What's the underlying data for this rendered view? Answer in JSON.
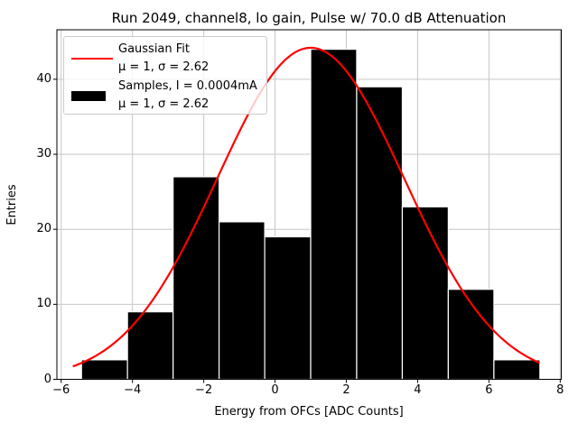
{
  "chart_data": {
    "type": "bar",
    "subtype": "histogram_with_gaussian_fit",
    "title": "Run 2049, channel8, lo gain, Pulse w/ 70.0 dB Attenuation",
    "xlabel": "Energy from OFCs [ADC Counts]",
    "ylabel": "Entries",
    "xlim": [
      -6.12,
      8.03
    ],
    "ylim": [
      0,
      46.6
    ],
    "x_ticks": [
      -6,
      -4,
      -2,
      0,
      2,
      4,
      6,
      8
    ],
    "x_tick_labels": [
      "−6",
      "−4",
      "−2",
      "0",
      "2",
      "4",
      "6",
      "8"
    ],
    "y_ticks": [
      0,
      10,
      20,
      30,
      40
    ],
    "y_tick_labels": [
      "0",
      "10",
      "20",
      "30",
      "40"
    ],
    "grid": true,
    "grid_color": "#c6c6c6",
    "histogram": {
      "bin_edges": [
        -5.43,
        -4.14,
        -2.86,
        -1.57,
        -0.29,
        1.0,
        2.29,
        3.57,
        4.86,
        6.14,
        7.43
      ],
      "counts": [
        2.6,
        9,
        27,
        21,
        19,
        44,
        39,
        23,
        12,
        2.6
      ],
      "bar_color": "#000000",
      "bar_edge_color": "#ffffff"
    },
    "fit": {
      "model": "gaussian",
      "mu": 1,
      "sigma": 2.62,
      "amplitude": 44.2,
      "x_start": -5.65,
      "x_end": 7.44,
      "color": "#ff0000"
    },
    "legend": {
      "position": "upper-left",
      "entries": [
        {
          "handle": "line",
          "color": "#ff0000",
          "label_line1": "Gaussian Fit",
          "label_line2": "μ = 1, σ = 2.62"
        },
        {
          "handle": "patch",
          "color": "#000000",
          "label_line1": "Samples, I = 0.0004mA",
          "label_line2": "μ = 1, σ = 2.62"
        }
      ]
    }
  }
}
